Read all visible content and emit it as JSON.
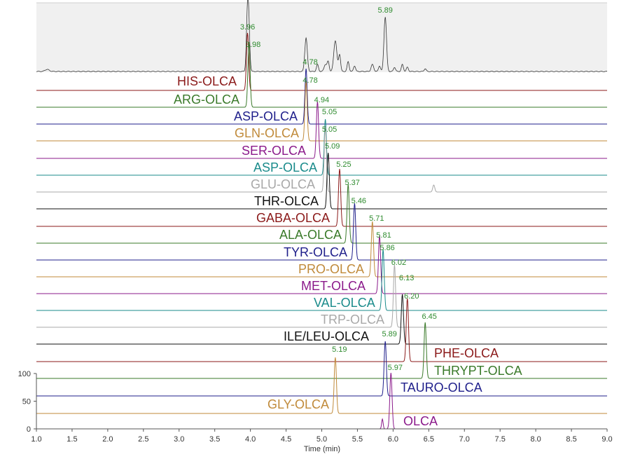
{
  "chart_data": {
    "type": "line",
    "title": "",
    "xlabel": "Time (min)",
    "ylabel": "",
    "xlim": [
      1.0,
      9.0
    ],
    "x_ticks": [
      "1.0",
      "1.5",
      "2.0",
      "2.5",
      "3.0",
      "3.5",
      "4.0",
      "4.5",
      "5.0",
      "5.5",
      "6.0",
      "6.5",
      "7.0",
      "7.5",
      "8.0",
      "8.5",
      "9.0"
    ],
    "y_ticks": [
      "0",
      "50",
      "100"
    ],
    "ylim": [
      0,
      100
    ],
    "top_panel": {
      "shaded": true,
      "peaks": [
        {
          "time": 3.96,
          "label": "3.96"
        },
        {
          "time": 5.89,
          "label": "5.89"
        }
      ]
    },
    "series": [
      {
        "name": "HIS-OLCA",
        "color": "#8b1a1a",
        "peak_time": 3.96
      },
      {
        "name": "ARG-OLCA",
        "color": "#3a7a2a",
        "peak_time": 3.98,
        "peak_label": "3.98"
      },
      {
        "name": "ASP-OLCA",
        "color": "#1f1f8b",
        "peak_time": 4.78,
        "peak_label": "4.78"
      },
      {
        "name": "GLN-OLCA",
        "color": "#c08a3a",
        "peak_time": 4.78,
        "peak_label": "4.78"
      },
      {
        "name": "SER-OLCA",
        "color": "#8b1a8b",
        "peak_time": 4.94,
        "peak_label": "4.94"
      },
      {
        "name": "ASP-OLCA",
        "color": "#1a8b8b",
        "peak_time": 5.05,
        "peak_label": "5.05"
      },
      {
        "name": "GLU-OLCA",
        "color": "#a8a8a8",
        "peak_time": 5.05,
        "peak_label": "5.05"
      },
      {
        "name": "THR-OLCA",
        "color": "#111111",
        "peak_time": 5.09,
        "peak_label": "5.09"
      },
      {
        "name": "GABA-OLCA",
        "color": "#8b1a1a",
        "peak_time": 5.25,
        "peak_label": "5.25"
      },
      {
        "name": "ALA-OLCA",
        "color": "#3a7a2a",
        "peak_time": 5.37,
        "peak_label": "5.37"
      },
      {
        "name": "TYR-OLCA",
        "color": "#1f1f8b",
        "peak_time": 5.46,
        "peak_label": "5.46"
      },
      {
        "name": "PRO-OLCA",
        "color": "#c08a3a",
        "peak_time": 5.71,
        "peak_label": "5.71"
      },
      {
        "name": "MET-OLCA",
        "color": "#8b1a8b",
        "peak_time": 5.81,
        "peak_label": "5.81"
      },
      {
        "name": "VAL-OLCA",
        "color": "#1a8b8b",
        "peak_time": 5.86,
        "peak_label": "5.86"
      },
      {
        "name": "TRP-OLCA",
        "color": "#a8a8a8",
        "peak_time": 6.02,
        "peak_label": "6.02"
      },
      {
        "name": "ILE/LEU-OLCA",
        "color": "#111111",
        "peak_time": 6.13,
        "peak_label": "6.13"
      },
      {
        "name": "PHE-OLCA",
        "color": "#8b1a1a",
        "peak_time": 6.2,
        "peak_label": "6.20"
      },
      {
        "name": "THRYPT-OLCA",
        "color": "#3a7a2a",
        "peak_time": 6.45,
        "peak_label": "6.45"
      },
      {
        "name": "TAURO-OLCA",
        "color": "#1f1f8b",
        "peak_time": 5.89,
        "peak_label": "5.89"
      },
      {
        "name": "GLY-OLCA",
        "color": "#c08a3a",
        "peak_time": 5.19,
        "peak_label": "5.19"
      },
      {
        "name": "OLCA",
        "color": "#8b1a8b",
        "peak_time": 5.97,
        "peak_label": "5.97"
      }
    ],
    "peak_label_color": "#2e8b2e"
  }
}
